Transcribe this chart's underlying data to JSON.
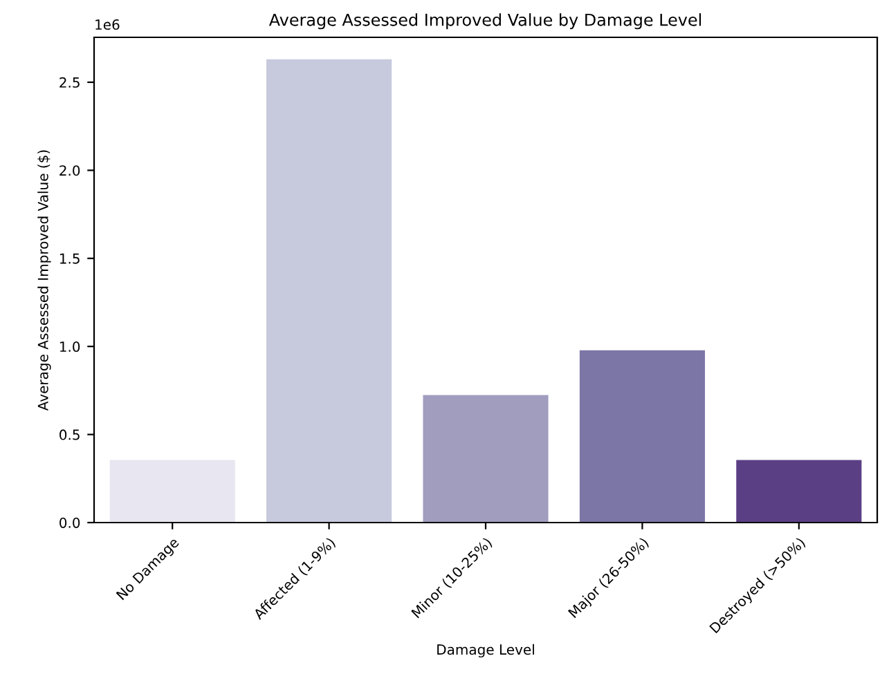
{
  "chart_data": {
    "type": "bar",
    "title": "Average Assessed Improved Value by Damage Level",
    "xlabel": "Damage Level",
    "ylabel": "Average Assessed Improved Value ($)",
    "annotations": [
      "1e6"
    ],
    "categories": [
      "No Damage",
      "Affected (1-9%)",
      "Minor (10-25%)",
      "Major (26-50%)",
      "Destroyed (>50%)"
    ],
    "values": [
      0.355,
      2.63,
      0.724,
      0.978,
      0.355
    ],
    "colors": [
      "#e8e6f0",
      "#c7c9dd",
      "#a09dbf",
      "#7c76a6",
      "#5b3f85"
    ],
    "ylim": [
      0,
      2.755
    ],
    "yticks": [
      {
        "value": 0,
        "label": "0.0"
      },
      {
        "value": 0.5,
        "label": "0.5"
      },
      {
        "value": 1.0,
        "label": "1.0"
      },
      {
        "value": 1.5,
        "label": "1.5"
      },
      {
        "value": 2.0,
        "label": "2.0"
      },
      {
        "value": 2.5,
        "label": "2.5"
      }
    ],
    "grid": false,
    "legend": false
  }
}
